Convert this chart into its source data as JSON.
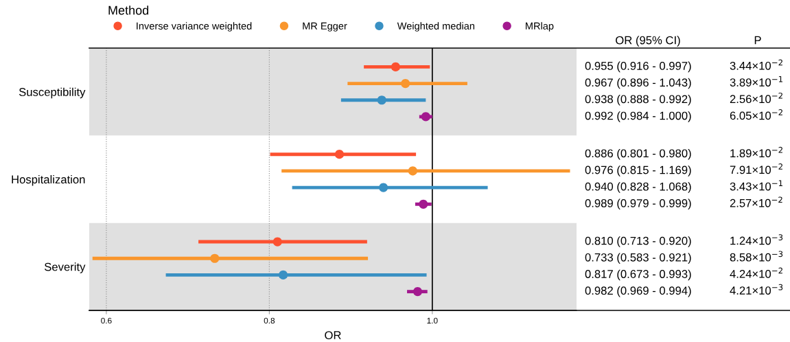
{
  "chart_data": {
    "type": "scatter",
    "orientation": "horizontal",
    "xlabel": "OR",
    "legend_title": "Method",
    "legend": "top left",
    "marker": "circle",
    "grid": false,
    "categories": [
      "Susceptibility",
      "Hospitalization",
      "Severity"
    ],
    "xlim": [
      0.579,
      1.177
    ],
    "xticks": [
      0.6,
      0.8,
      {
        "value": 1.0,
        "label": "1.0"
      }
    ],
    "ref_lines": [
      {
        "axis": "x",
        "value": 0.6,
        "color": "#999999",
        "line_style": "dotted"
      },
      {
        "axis": "x",
        "value": 0.8,
        "color": "#999999",
        "line_style": "dotted"
      },
      {
        "axis": "x",
        "value": 1.0,
        "color": "#000000",
        "line_style": "solid"
      }
    ],
    "bands": [
      {
        "axis": "y",
        "from": "Susceptibility",
        "to": "Susceptibility",
        "color": "#e0e0e0"
      },
      {
        "axis": "y",
        "from": "Severity",
        "to": "Severity",
        "color": "#e0e0e0"
      }
    ],
    "series": [
      {
        "name": "Inverse variance weighted",
        "color": "#fc5130",
        "values": [
          0.955,
          0.886,
          0.81
        ],
        "errors": [
          [
            0.916,
            0.997
          ],
          [
            0.801,
            0.98
          ],
          [
            0.713,
            0.92
          ]
        ]
      },
      {
        "name": "MR Egger",
        "color": "#f9962d",
        "values": [
          0.967,
          0.976,
          0.733
        ],
        "errors": [
          [
            0.896,
            1.043
          ],
          [
            0.815,
            1.169
          ],
          [
            0.583,
            0.921
          ]
        ]
      },
      {
        "name": "Weighted median",
        "color": "#3990c3",
        "values": [
          0.938,
          0.94,
          0.817
        ],
        "errors": [
          [
            0.888,
            0.992
          ],
          [
            0.828,
            1.068
          ],
          [
            0.673,
            0.993
          ]
        ]
      },
      {
        "name": "MRlap",
        "color": "#a3198f",
        "values": [
          0.992,
          0.989,
          0.982
        ],
        "errors": [
          [
            0.984,
            1.0
          ],
          [
            0.979,
            0.999
          ],
          [
            0.969,
            0.994
          ]
        ]
      }
    ],
    "annotations": [
      "OR (95% CI)",
      "P",
      "0.955 (0.916 - 0.997)",
      "3.44×10$^{−2}$",
      "0.967 (0.896 - 1.043)",
      "3.89×10$^{−1}$",
      "0.938 (0.888 - 0.992)",
      "2.56×10$^{−2}$",
      "0.992 (0.984 - 1.000)",
      "6.05×10$^{−2}$",
      "0.886 (0.801 - 0.980)",
      "1.89×10$^{−2}$",
      "0.976 (0.815 - 1.169)",
      "7.91×10$^{−2}$",
      "0.940 (0.828 - 1.068)",
      "3.43×10$^{−1}$",
      "0.989 (0.979 - 0.999)",
      "2.57×10$^{−2}$",
      "0.810 (0.713 - 0.920)",
      "1.24×10$^{−3}$",
      "0.733 (0.583 - 0.921)",
      "8.58×10$^{−3}$",
      "0.817 (0.673 - 0.993)",
      "4.24×10$^{−2}$",
      "0.982 (0.969 - 0.994)",
      "4.21×10$^{−3}$"
    ]
  }
}
